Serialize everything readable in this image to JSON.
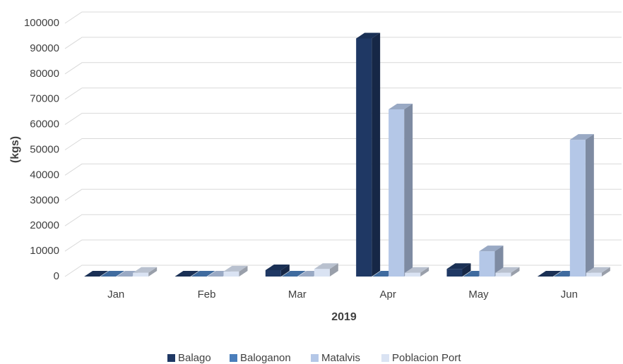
{
  "chart_data": {
    "type": "bar3d",
    "x_label": "2019",
    "y_label": "(kgs)",
    "categories": [
      "Jan",
      "Feb",
      "Mar",
      "Apr",
      "May",
      "Jun"
    ],
    "series": [
      {
        "name": "Balago",
        "color": "#1f3864",
        "values": [
          0,
          0,
          2500,
          94000,
          3000,
          0
        ]
      },
      {
        "name": "Baloganon",
        "color": "#4a7ebb",
        "values": [
          0,
          0,
          0,
          0,
          0,
          0
        ]
      },
      {
        "name": "Matalvis",
        "color": "#b4c7e7",
        "values": [
          0,
          0,
          0,
          66000,
          10000,
          54000
        ]
      },
      {
        "name": "Poblacion Port",
        "color": "#dae3f3",
        "values": [
          1500,
          2000,
          3000,
          1500,
          1500,
          1500
        ]
      }
    ],
    "ylim": [
      0,
      100000
    ],
    "yticks": [
      0,
      10000,
      20000,
      30000,
      40000,
      50000,
      60000,
      70000,
      80000,
      90000,
      100000
    ],
    "grid": true,
    "legend": "bottom"
  }
}
